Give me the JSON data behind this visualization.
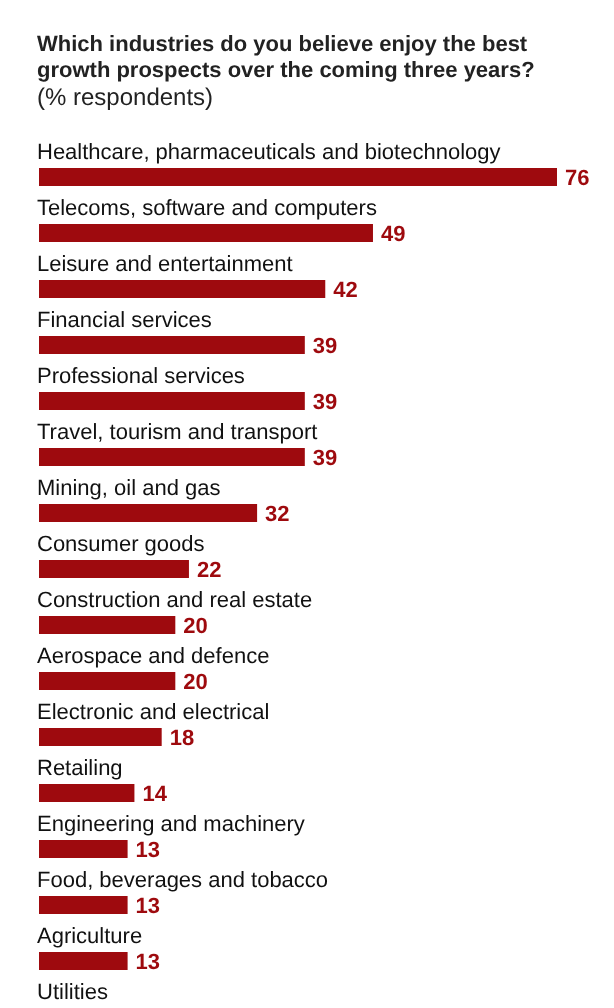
{
  "chart_data": {
    "type": "bar",
    "orientation": "horizontal",
    "title": "Which industries do you believe enjoy the best growth prospects over the coming three years?",
    "subtitle": "(% respondents)",
    "categories": [
      "Healthcare, pharmaceuticals and biotechnology",
      "Telecoms, software and computers",
      "Leisure and entertainment",
      "Financial services",
      "Professional services",
      "Travel, tourism and transport",
      "Mining, oil and gas",
      "Consumer goods",
      "Construction and real estate",
      "Aerospace and defence",
      "Electronic and electrical",
      "Retailing",
      "Engineering and machinery",
      "Food, beverages and tobacco",
      "Agriculture",
      "Utilities"
    ],
    "values": [
      76,
      49,
      42,
      39,
      39,
      39,
      32,
      22,
      20,
      20,
      18,
      14,
      13,
      13,
      13,
      null
    ],
    "color": "#9e0a0e",
    "data_labels": true
  }
}
